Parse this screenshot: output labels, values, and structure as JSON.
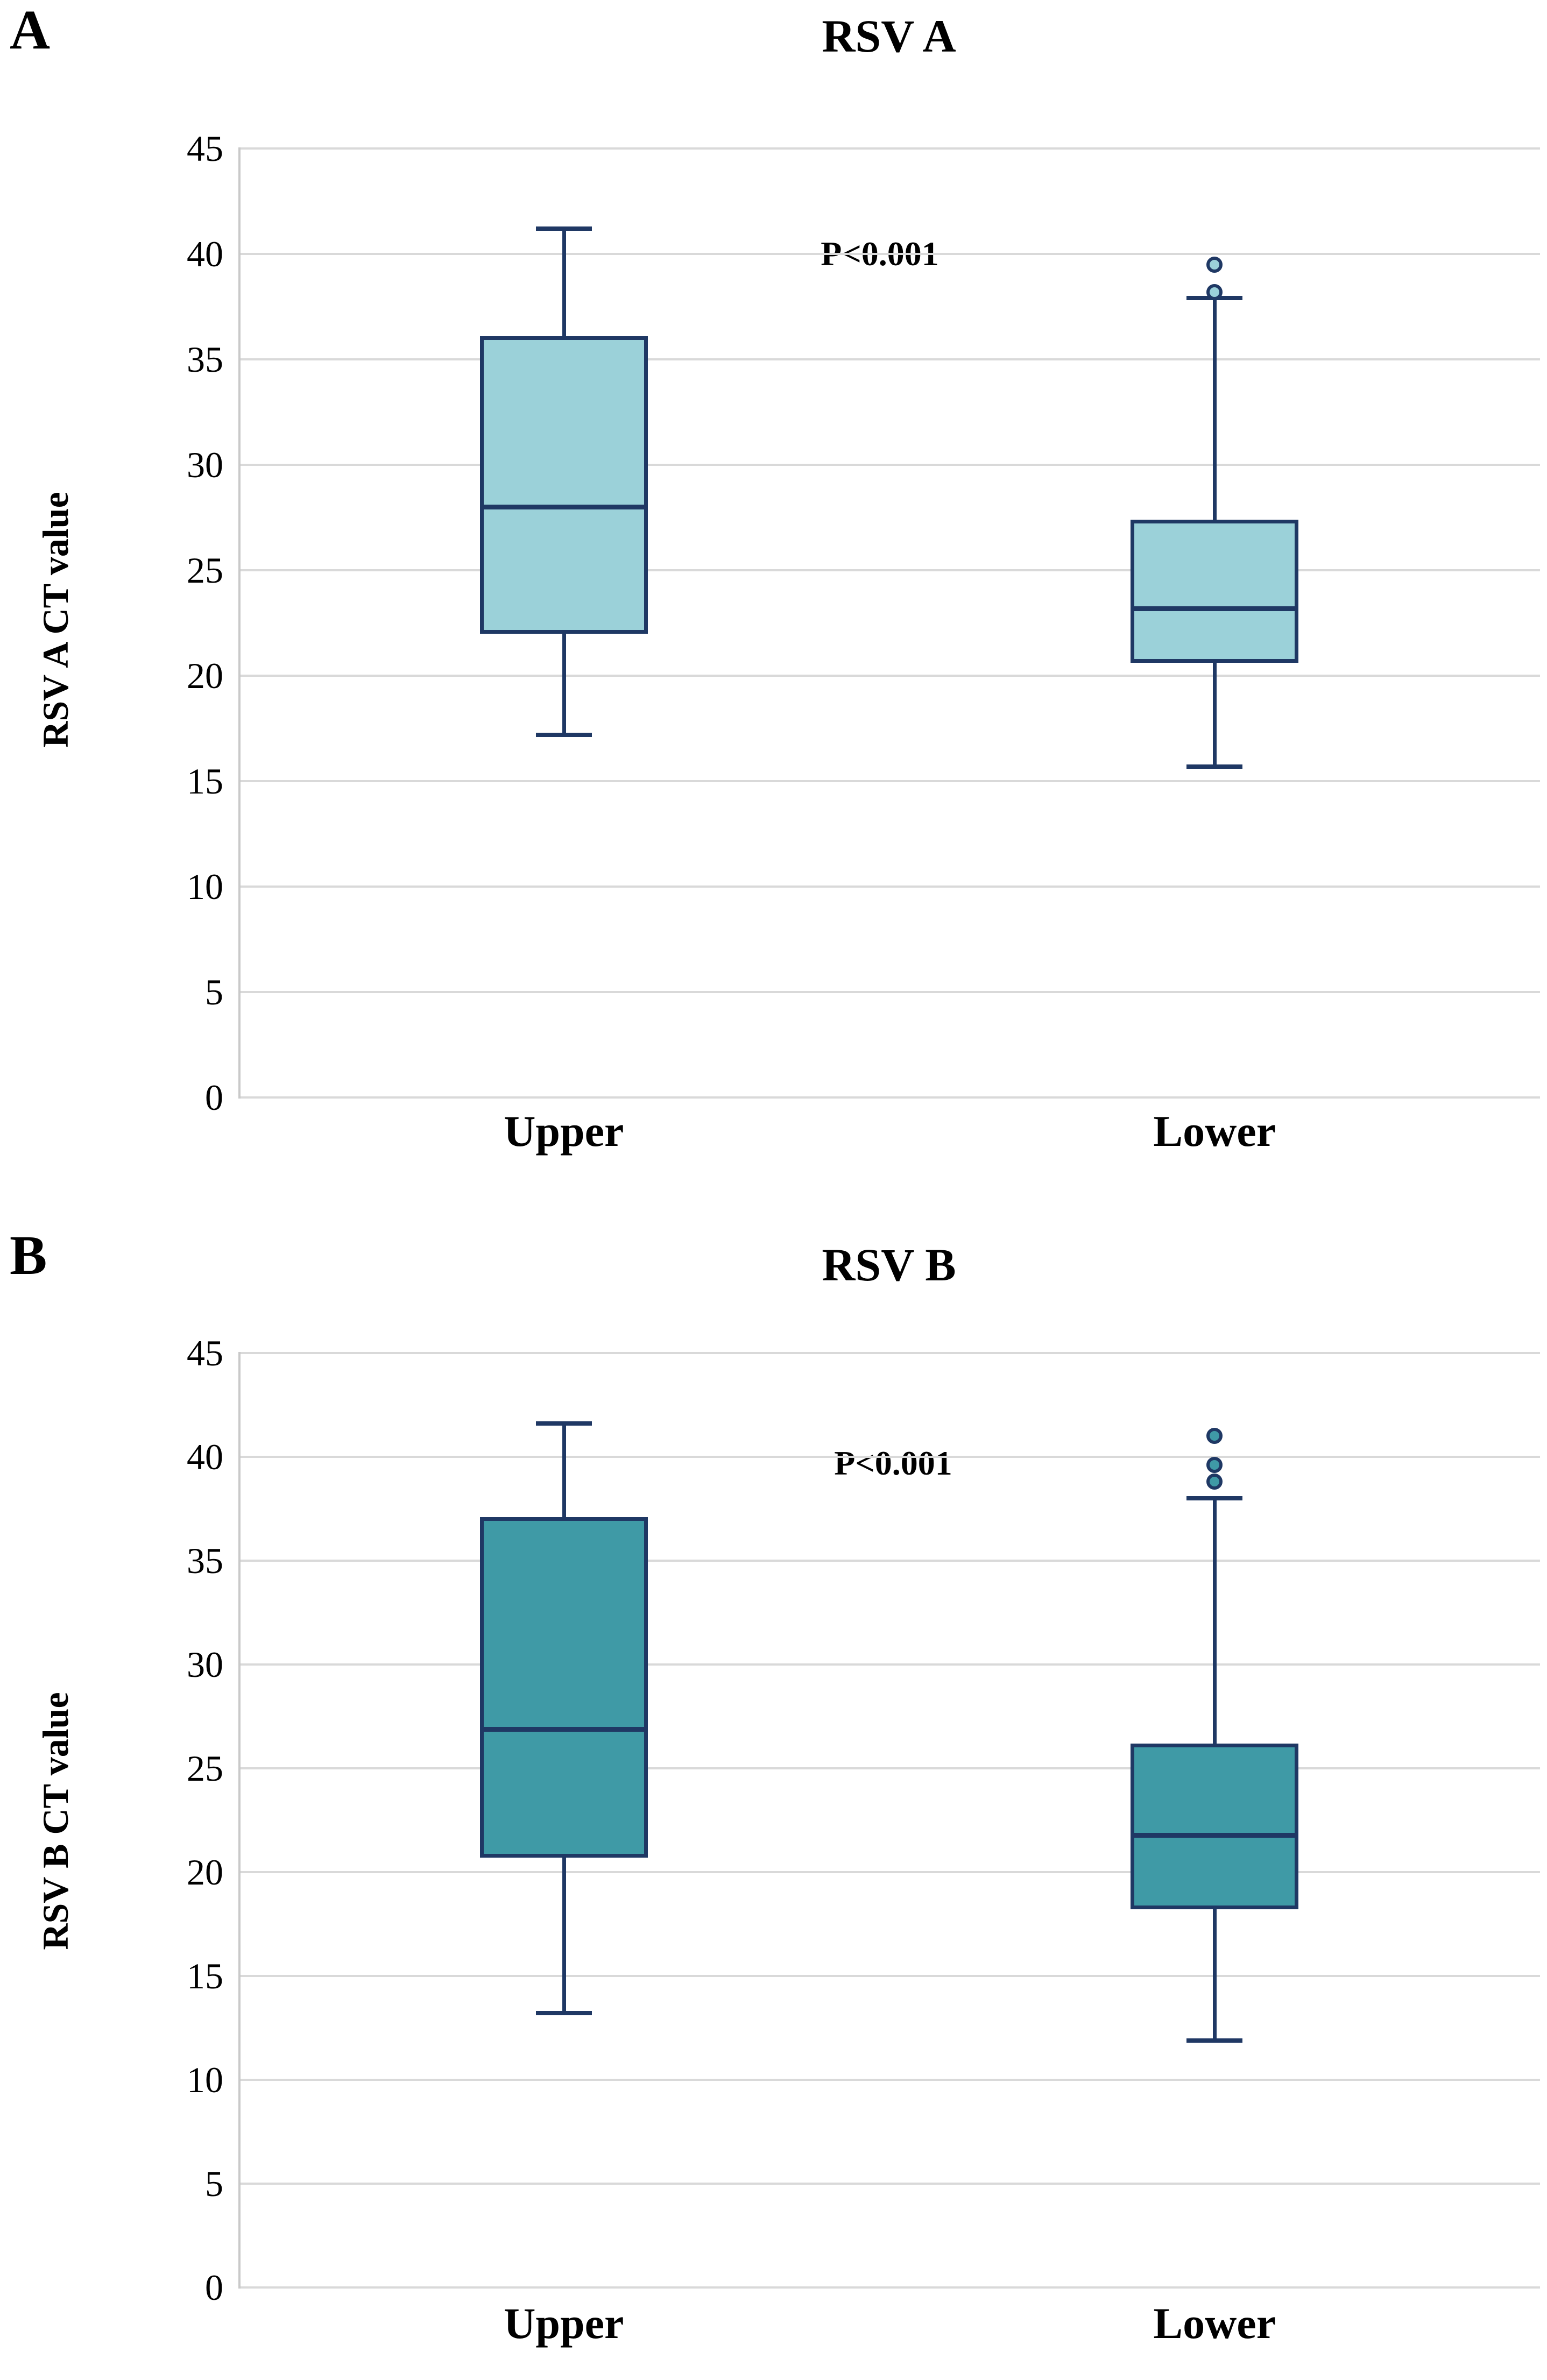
{
  "chart_data": [
    {
      "type": "box",
      "panel_label": "A",
      "title": "RSV A",
      "ylabel": "RSV A CT value",
      "annotation": "P<0.001",
      "categories": [
        "Upper",
        "Lower"
      ],
      "ylim": [
        0,
        45
      ],
      "yticks": [
        45,
        40,
        35,
        30,
        25,
        20,
        15,
        10,
        5,
        0
      ],
      "grid": "horizontal",
      "legend": "none",
      "box_fill": "#9bd1d9",
      "line_color": "#1f3864",
      "series": [
        {
          "category": "Upper",
          "whisker_low": 17.2,
          "q1": 22.0,
          "median": 28.0,
          "q3": 36.1,
          "whisker_high": 41.2,
          "outliers": []
        },
        {
          "category": "Lower",
          "whisker_low": 15.7,
          "q1": 20.6,
          "median": 23.2,
          "q3": 27.4,
          "whisker_high": 37.9,
          "outliers": [
            39.5,
            38.2
          ]
        }
      ]
    },
    {
      "type": "box",
      "panel_label": "B",
      "title": "RSV B",
      "ylabel": "RSV B CT value",
      "annotation": "P<0.001",
      "categories": [
        "Upper",
        "Lower"
      ],
      "ylim": [
        0,
        45
      ],
      "yticks": [
        45,
        40,
        35,
        30,
        25,
        20,
        15,
        10,
        5,
        0
      ],
      "grid": "horizontal",
      "legend": "none",
      "box_fill": "#3f9aa6",
      "line_color": "#1f3864",
      "series": [
        {
          "category": "Upper",
          "whisker_low": 13.2,
          "q1": 20.7,
          "median": 26.9,
          "q3": 37.1,
          "whisker_high": 41.6,
          "outliers": []
        },
        {
          "category": "Lower",
          "whisker_low": 11.9,
          "q1": 18.2,
          "median": 21.8,
          "q3": 26.2,
          "whisker_high": 38.0,
          "outliers": [
            41.0,
            39.6,
            38.8
          ]
        }
      ]
    }
  ]
}
